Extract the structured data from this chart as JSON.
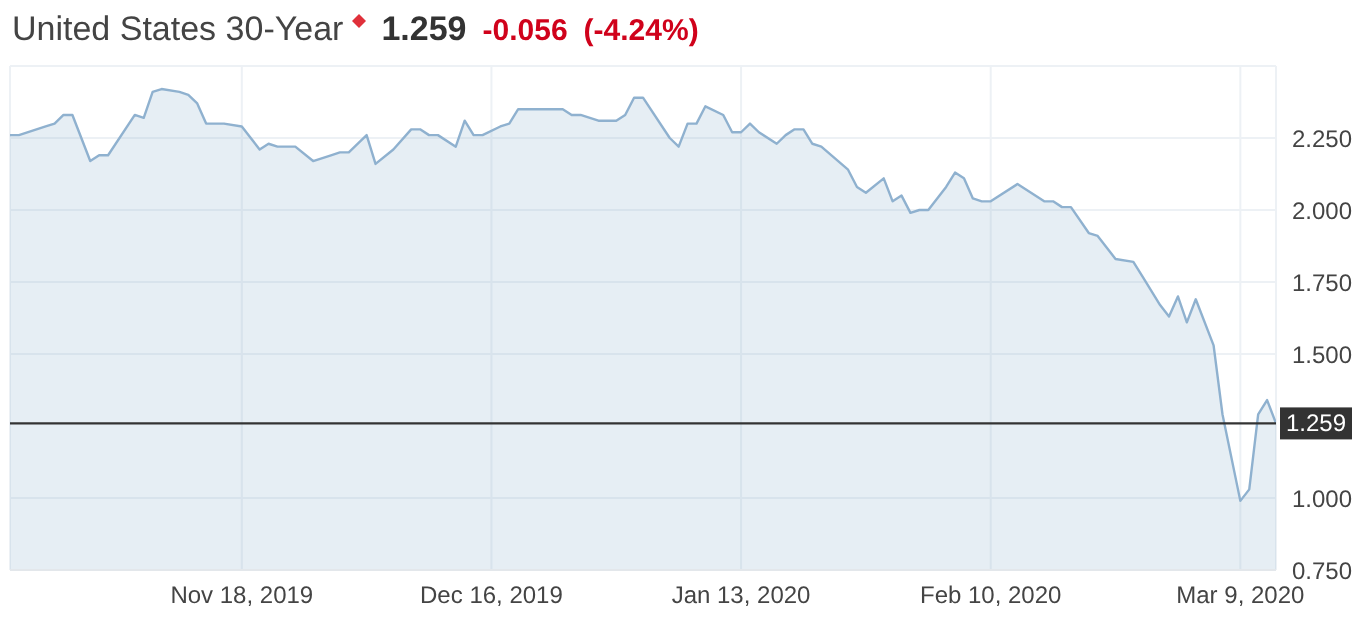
{
  "chart_data": {
    "type": "area",
    "title": "United States 30-Year",
    "annotations": [
      "1.259",
      "-0.056",
      "(-4.24%)"
    ],
    "x": [
      "2019-10-23",
      "2019-10-24",
      "2019-10-27",
      "2019-10-28",
      "2019-10-29",
      "2019-10-30",
      "2019-11-01",
      "2019-11-02",
      "2019-11-03",
      "2019-11-06",
      "2019-11-07",
      "2019-11-08",
      "2019-11-09",
      "2019-11-11",
      "2019-11-12",
      "2019-11-13",
      "2019-11-14",
      "2019-11-16",
      "2019-11-18",
      "2019-11-20",
      "2019-11-21",
      "2019-11-22",
      "2019-11-24",
      "2019-11-26",
      "2019-11-28",
      "2019-11-29",
      "2019-11-30",
      "2019-12-02",
      "2019-12-03",
      "2019-12-05",
      "2019-12-07",
      "2019-12-08",
      "2019-12-09",
      "2019-12-10",
      "2019-12-12",
      "2019-12-13",
      "2019-12-14",
      "2019-12-15",
      "2019-12-17",
      "2019-12-18",
      "2019-12-19",
      "2019-12-20",
      "2019-12-22",
      "2019-12-24",
      "2019-12-25",
      "2019-12-26",
      "2019-12-28",
      "2019-12-30",
      "2019-12-31",
      "2020-01-01",
      "2020-01-02",
      "2020-01-05",
      "2020-01-06",
      "2020-01-07",
      "2020-01-08",
      "2020-01-09",
      "2020-01-11",
      "2020-01-12",
      "2020-01-13",
      "2020-01-14",
      "2020-01-15",
      "2020-01-17",
      "2020-01-18",
      "2020-01-19",
      "2020-01-20",
      "2020-01-21",
      "2020-01-22",
      "2020-01-25",
      "2020-01-26",
      "2020-01-27",
      "2020-01-29",
      "2020-01-30",
      "2020-01-31",
      "2020-02-01",
      "2020-02-02",
      "2020-02-03",
      "2020-02-05",
      "2020-02-06",
      "2020-02-07",
      "2020-02-08",
      "2020-02-09",
      "2020-02-10",
      "2020-02-13",
      "2020-02-14",
      "2020-02-16",
      "2020-02-17",
      "2020-02-18",
      "2020-02-19",
      "2020-02-21",
      "2020-02-22",
      "2020-02-24",
      "2020-02-26",
      "2020-02-27",
      "2020-02-29",
      "2020-03-01",
      "2020-03-02",
      "2020-03-03",
      "2020-03-04",
      "2020-03-06",
      "2020-03-07",
      "2020-03-09",
      "2020-03-10",
      "2020-03-11",
      "2020-03-12",
      "2020-03-13"
    ],
    "series": [
      {
        "color": "#8fb1cf",
        "values": [
          2.26,
          2.26,
          2.29,
          2.3,
          2.33,
          2.33,
          2.17,
          2.19,
          2.19,
          2.33,
          2.32,
          2.41,
          2.42,
          2.41,
          2.4,
          2.37,
          2.3,
          2.3,
          2.29,
          2.21,
          2.23,
          2.22,
          2.22,
          2.17,
          2.19,
          2.2,
          2.2,
          2.26,
          2.16,
          2.21,
          2.28,
          2.28,
          2.26,
          2.26,
          2.22,
          2.31,
          2.26,
          2.26,
          2.29,
          2.3,
          2.35,
          2.35,
          2.35,
          2.35,
          2.33,
          2.33,
          2.31,
          2.31,
          2.33,
          2.39,
          2.39,
          2.25,
          2.22,
          2.3,
          2.3,
          2.36,
          2.33,
          2.27,
          2.27,
          2.3,
          2.27,
          2.23,
          2.26,
          2.28,
          2.28,
          2.23,
          2.22,
          2.14,
          2.08,
          2.06,
          2.11,
          2.03,
          2.05,
          1.99,
          2.0,
          2.0,
          2.08,
          2.13,
          2.11,
          2.04,
          2.03,
          2.03,
          2.09,
          2.07,
          2.03,
          2.03,
          2.01,
          2.01,
          1.92,
          1.91,
          1.83,
          1.82,
          1.77,
          1.67,
          1.63,
          1.7,
          1.61,
          1.69,
          1.53,
          1.29,
          0.99,
          1.03,
          1.29,
          1.34,
          1.259
        ]
      }
    ],
    "xlim": [
      "2019-10-23",
      "2020-03-13"
    ],
    "xticks": [
      {
        "value": "2019-11-18",
        "label": "Nov 18, 2019"
      },
      {
        "value": "2019-12-16",
        "label": "Dec 16, 2019"
      },
      {
        "value": "2020-01-13",
        "label": "Jan 13, 2020"
      },
      {
        "value": "2020-02-10",
        "label": "Feb 10, 2020"
      },
      {
        "value": "2020-03-09",
        "label": "Mar 9, 2020"
      }
    ],
    "ylim": [
      0.75,
      2.5
    ],
    "yticks": [
      {
        "value": 0.75,
        "label": "0.750"
      },
      {
        "value": 1,
        "label": "1.000"
      },
      {
        "value": 1.5,
        "label": "1.500"
      },
      {
        "value": 1.75,
        "label": "1.750"
      },
      {
        "value": 2,
        "label": "2.000"
      },
      {
        "value": 2.25,
        "label": "2.250"
      }
    ],
    "ref_lines": [
      {
        "axis": "y",
        "value": 1.259,
        "label": "1.259",
        "color": "#333333"
      }
    ],
    "grid": true
  }
}
